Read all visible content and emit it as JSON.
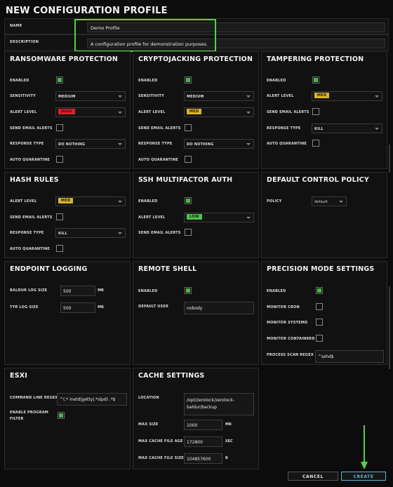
{
  "title": "NEW CONFIGURATION PROFILE",
  "name": {
    "label": "NAME",
    "value": "Demo Profile"
  },
  "description": {
    "label": "DESCRIPTION",
    "value": "A configuration profile for demonstration purposes."
  },
  "ransomware": {
    "title": "RANSOMWARE PROTECTION",
    "enabled_label": "ENABLED",
    "sensitivity_label": "SENSITIVITY",
    "sensitivity": "MEDIUM",
    "alert_label": "ALERT LEVEL",
    "alert": "HIGH",
    "email_label": "SEND EMAIL ALERTS",
    "response_label": "RESPONSE TYPE",
    "response": "DO NOTHING",
    "quarantine_label": "AUTO QUARANTINE"
  },
  "cryptojacking": {
    "title": "CRYPTOJACKING PROTECTION",
    "enabled_label": "ENABLED",
    "sensitivity_label": "SENSITIVITY",
    "sensitivity": "MEDIUM",
    "alert_label": "ALERT LEVEL",
    "alert": "MED",
    "email_label": "SEND EMAIL ALERTS",
    "response_label": "RESPONSE TYPE",
    "response": "DO NOTHING",
    "quarantine_label": "AUTO QUARANTINE"
  },
  "tampering": {
    "title": "TAMPERING PROTECTION",
    "enabled_label": "ENABLED",
    "alert_label": "ALERT LEVEL",
    "alert": "MED",
    "email_label": "SEND EMAIL ALERTS",
    "response_label": "RESPONSE TYPE",
    "response": "KILL",
    "quarantine_label": "AUTO QUARANTINE"
  },
  "hash": {
    "title": "HASH RULES",
    "alert_label": "ALERT LEVEL",
    "alert": "MED",
    "email_label": "SEND EMAIL ALERTS",
    "response_label": "RESPONSE TYPE",
    "response": "KILL",
    "quarantine_label": "AUTO QUARANTINE"
  },
  "ssh": {
    "title": "SSH MULTIFACTOR AUTH",
    "enabled_label": "ENABLED",
    "alert_label": "ALERT LEVEL",
    "alert": "LOW",
    "email_label": "SEND EMAIL ALERTS"
  },
  "policy": {
    "title": "DEFAULT CONTROL POLICY",
    "policy_label": "POLICY",
    "policy": "default"
  },
  "logging": {
    "title": "ENDPOINT LOGGING",
    "baldur_label": "BALDUR LOG SIZE",
    "baldur": "500",
    "baldur_unit": "MB",
    "tyr_label": "TYR LOG SIZE",
    "tyr": "500",
    "tyr_unit": "MB"
  },
  "shell": {
    "title": "REMOTE SHELL",
    "enabled_label": "ENABLED",
    "user_label": "DEFAULT USER",
    "user": "nobody"
  },
  "precision": {
    "title": "PRECISION MODE SETTINGS",
    "enabled_label": "ENABLED",
    "cron_label": "MONITOR CRON",
    "systemd_label": "MONITOR SYSTEMD",
    "containerd_label": "MONITOR CONTAINERD",
    "regex_label": "PROCESS SCAN REGEX",
    "regex": "^sshd$"
  },
  "esxi": {
    "title": "ESXI",
    "cmd_label": "COMMAND LINE REGEX",
    "cmd": "^(.* inetd|getty|.*slpd) .*$",
    "filter_label_1": "ENABLE PROGRAM",
    "filter_label_2": "FILTER"
  },
  "cache": {
    "title": "CACHE SETTINGS",
    "location_label": "LOCATION",
    "location_1": "/opt/zerolock/zerolock-",
    "location_2": "baldur/backup",
    "maxsize_label": "MAX SIZE",
    "maxsize": "1000",
    "maxsize_unit": "MB",
    "age_label": "MAX CACHE FILE AGE",
    "age": "172800",
    "age_unit": "SEC",
    "filesize_label": "MAX CACHE FILE SIZE",
    "filesize": "104857600",
    "filesize_unit": "B"
  },
  "buttons": {
    "cancel": "CANCEL",
    "create": "CREATE"
  },
  "colors": {
    "high": "#e0202a",
    "med": "#d6b32a",
    "low": "#4cc34a",
    "accent": "#5fb4d6",
    "annotation": "#55d046"
  }
}
